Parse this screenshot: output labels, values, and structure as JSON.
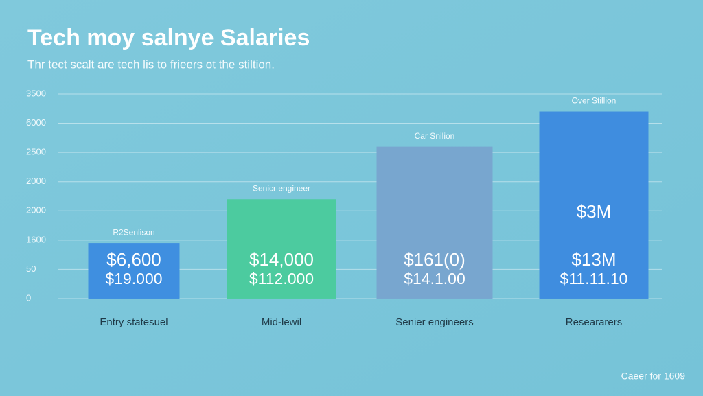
{
  "chart_data": {
    "type": "bar",
    "title": "Tech moy salnye Salaries",
    "subtitle": "Thr tect scalt are tech lis to frieers ot the stiltion.",
    "categories": [
      "Entry statesuel",
      "Mid-lewil",
      "Senier engineers",
      "Researarers"
    ],
    "values": [
      1.9,
      3.4,
      5.2,
      6.4
    ],
    "colors": [
      "#3f8fe0",
      "#4ccb9f",
      "#78a6cf",
      "#3f8ddf"
    ],
    "top_labels": [
      "R2Senlison",
      "Senicr engineer",
      "Car Snilion",
      "Over Stillion"
    ],
    "inner_labels": [
      [
        "$6,600",
        "$19.000"
      ],
      [
        "$14,000",
        "$112.000"
      ],
      [
        "$161(0)",
        "$14.1.00"
      ],
      [
        "$3M",
        "$13M",
        "$11.11.10"
      ]
    ],
    "ylim": [
      -0.2,
      7.5
    ],
    "yticks": [
      {
        "value": 0,
        "label": "0"
      },
      {
        "value": 1,
        "label": "50"
      },
      {
        "value": 2,
        "label": "1600"
      },
      {
        "value": 3,
        "label": "2000"
      },
      {
        "value": 4,
        "label": "2000"
      },
      {
        "value": 5,
        "label": "2500"
      },
      {
        "value": 6,
        "label": "6000"
      },
      {
        "value": 7,
        "label": "3500"
      }
    ],
    "grid": true,
    "footer": "Caeer for 1609"
  }
}
